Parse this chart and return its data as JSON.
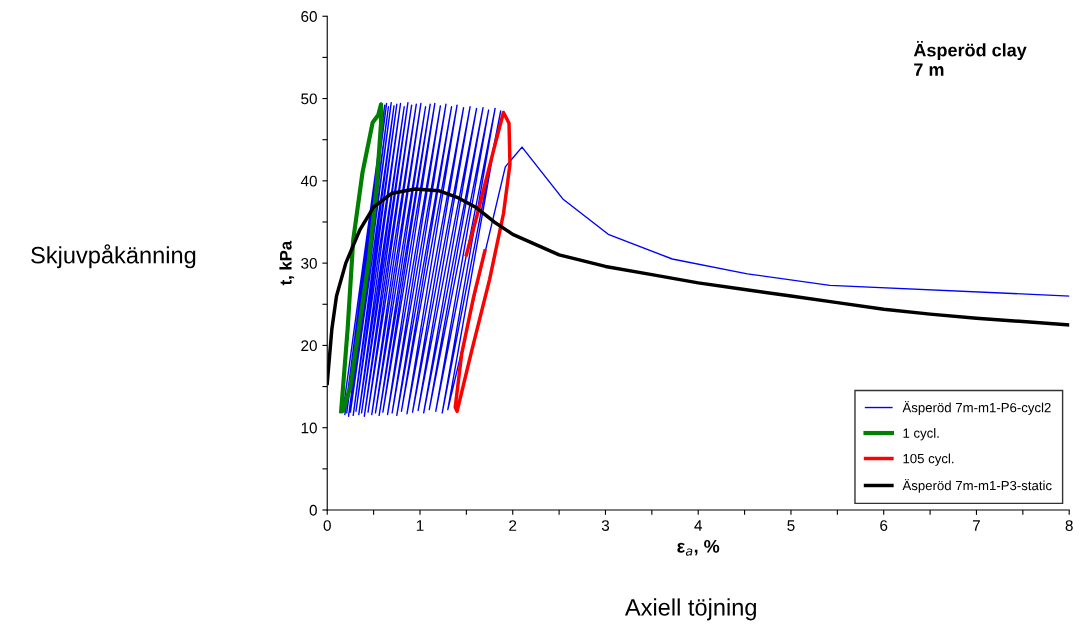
{
  "chart_data": {
    "type": "line",
    "xlabel": "ε$_{a}$, %",
    "ylabel": "t, kPa",
    "xlim": [
      0,
      8
    ],
    "ylim": [
      0,
      60
    ],
    "xticks": [
      0,
      {
        "value": 0.5,
        "label": null
      },
      1,
      {
        "value": 1.5,
        "label": null
      },
      2,
      {
        "value": 2.5,
        "label": null
      },
      3,
      {
        "value": 3.5,
        "label": null
      },
      4,
      {
        "value": 4.5,
        "label": null
      },
      5,
      {
        "value": 5.5,
        "label": null
      },
      6,
      {
        "value": 6.5,
        "label": null
      },
      7,
      {
        "value": 7.5,
        "label": null
      },
      8
    ],
    "yticks": [
      0,
      {
        "value": 5,
        "label": null
      },
      10,
      {
        "value": 15,
        "label": null
      },
      20,
      {
        "value": 25,
        "label": null
      },
      30,
      {
        "value": 35,
        "label": null
      },
      40,
      {
        "value": 45,
        "label": null
      },
      50,
      {
        "value": 55,
        "label": null
      },
      60
    ],
    "grid": false,
    "legend": "bottom right",
    "marker": "none",
    "line_style": "solid",
    "annotations": [
      "Äsperöd clay\n7 m",
      "Skjuvpåkänning",
      "Axiell töjning"
    ],
    "series": [
      {
        "name": "Äsperöd 7m-m1-P6-cycl2",
        "color": "#0000ff",
        "x": [
          0.17,
          0.62,
          0.19,
          0.64,
          0.21,
          0.66,
          0.23,
          0.69,
          0.25,
          0.72,
          0.28,
          0.75,
          0.31,
          0.79,
          0.34,
          0.83,
          0.37,
          0.87,
          0.4,
          0.91,
          0.44,
          0.96,
          0.48,
          1.01,
          0.52,
          1.06,
          0.56,
          1.11,
          0.6,
          1.16,
          0.65,
          1.22,
          0.7,
          1.28,
          0.75,
          1.34,
          0.8,
          1.4,
          0.86,
          1.47,
          0.92,
          1.54,
          0.98,
          1.61,
          1.04,
          1.68,
          1.1,
          1.74,
          1.17,
          1.81,
          1.24,
          1.87,
          1.3,
          1.92,
          2.1,
          2.54,
          3.03,
          3.72,
          4.53,
          5.42,
          8.0
        ],
        "values": [
          12.0,
          49.2,
          11.6,
          49.4,
          11.8,
          49.0,
          11.4,
          49.5,
          11.9,
          49.1,
          11.5,
          49.3,
          12.0,
          49.4,
          11.6,
          49.0,
          11.8,
          49.5,
          11.4,
          49.2,
          11.9,
          49.3,
          11.6,
          49.4,
          11.8,
          49.0,
          11.5,
          49.3,
          11.9,
          49.4,
          11.6,
          49.1,
          11.8,
          49.3,
          11.5,
          49.0,
          12.0,
          49.2,
          11.7,
          48.9,
          11.9,
          49.0,
          12.1,
          48.8,
          11.8,
          48.9,
          12.2,
          48.6,
          12.0,
          48.8,
          11.8,
          48.5,
          12.2,
          41.7,
          44.1,
          37.8,
          33.5,
          30.5,
          28.7,
          27.3,
          26.0
        ]
      },
      {
        "name": "1 cycl.",
        "color": "#008000",
        "x": [
          0.15,
          0.22,
          0.28,
          0.38,
          0.49,
          0.55,
          0.58,
          0.58,
          0.53,
          0.45,
          0.35,
          0.25,
          0.17
        ],
        "values": [
          12.0,
          22.0,
          32.8,
          41.0,
          47.1,
          48.0,
          49.3,
          47.0,
          38.9,
          30.5,
          22.7,
          15.0,
          12.1
        ]
      },
      {
        "name": "105 cycl.",
        "color": "#ff0000",
        "x": [
          1.5,
          1.62,
          1.8,
          1.9,
          1.96,
          1.97,
          1.9,
          1.75,
          1.55,
          1.4,
          1.38,
          1.45,
          1.58,
          1.7
        ],
        "values": [
          31.0,
          36.0,
          44.0,
          48.3,
          47.0,
          42.0,
          36.0,
          28.0,
          19.0,
          12.0,
          12.5,
          19.0,
          26.0,
          31.5
        ]
      },
      {
        "name": "Äsperöd 7m-m1-P3-static",
        "color": "#000000",
        "x": [
          0.0,
          0.05,
          0.1,
          0.2,
          0.35,
          0.5,
          0.7,
          0.95,
          1.2,
          1.4,
          1.6,
          1.8,
          2.0,
          2.5,
          3.0,
          3.5,
          4.0,
          4.5,
          5.0,
          5.5,
          6.0,
          6.5,
          7.0,
          7.5,
          8.0
        ],
        "values": [
          15.4,
          22.0,
          26.0,
          30.0,
          34.0,
          36.8,
          38.5,
          39.0,
          38.8,
          38.0,
          36.8,
          35.0,
          33.5,
          31.0,
          29.6,
          28.6,
          27.6,
          26.8,
          26.0,
          25.2,
          24.4,
          23.8,
          23.3,
          22.9,
          22.5
        ]
      }
    ]
  }
}
